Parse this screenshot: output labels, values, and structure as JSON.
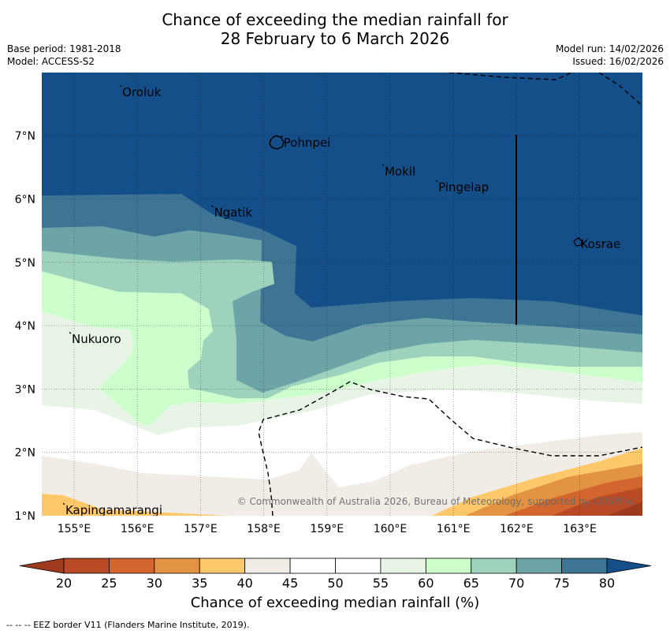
{
  "title": {
    "line1": "Chance of exceeding the median rainfall for",
    "line2": "28 February to 6 March 2026"
  },
  "meta": {
    "base_period": "Base period: 1981-2018",
    "model": "Model: ACCESS-S2",
    "model_run": "Model run: 14/02/2026",
    "issued": "Issued: 16/02/2026"
  },
  "map": {
    "lon_labels": [
      "155°E",
      "156°E",
      "157°E",
      "158°E",
      "159°E",
      "160°E",
      "161°E",
      "162°E",
      "163°E"
    ],
    "lat_labels": [
      "7°N",
      "6°N",
      "5°N",
      "4°N",
      "3°N",
      "2°N",
      "1°N"
    ],
    "places": [
      {
        "name": "Oroluk",
        "lon": 155.75,
        "lat": 7.7
      },
      {
        "name": "Pohnpei",
        "lon": 158.3,
        "lat": 6.9
      },
      {
        "name": "Mokil",
        "lon": 159.9,
        "lat": 6.45
      },
      {
        "name": "Pingelap",
        "lon": 160.75,
        "lat": 6.2
      },
      {
        "name": "Ngatik",
        "lon": 157.2,
        "lat": 5.8
      },
      {
        "name": "Kosrae",
        "lon": 163.0,
        "lat": 5.3
      },
      {
        "name": "Nukuoro",
        "lon": 154.95,
        "lat": 3.8
      },
      {
        "name": "Kapingamarangi",
        "lon": 154.85,
        "lat": 1.1
      }
    ],
    "copyright": "© Commonwealth of Australia 2026, Bureau of Meteorology, supported by COSPPac"
  },
  "colorbar": {
    "ticks": [
      "20",
      "25",
      "30",
      "35",
      "40",
      "45",
      "50",
      "55",
      "60",
      "65",
      "70",
      "75",
      "80"
    ],
    "colors": [
      "#9e3a1e",
      "#b84a26",
      "#d2662e",
      "#e29344",
      "#fdc86a",
      "#f1ece6",
      "#ffffff",
      "#ffffff",
      "#e8f5e6",
      "#ccffcc",
      "#9ed2bc",
      "#6da4a8",
      "#3e7595",
      "#154f8a"
    ],
    "label": "Chance of exceeding median rainfall (%)"
  },
  "footer": "--  --  -- EEZ border V11 (Flanders Marine Institute, 2019)."
}
